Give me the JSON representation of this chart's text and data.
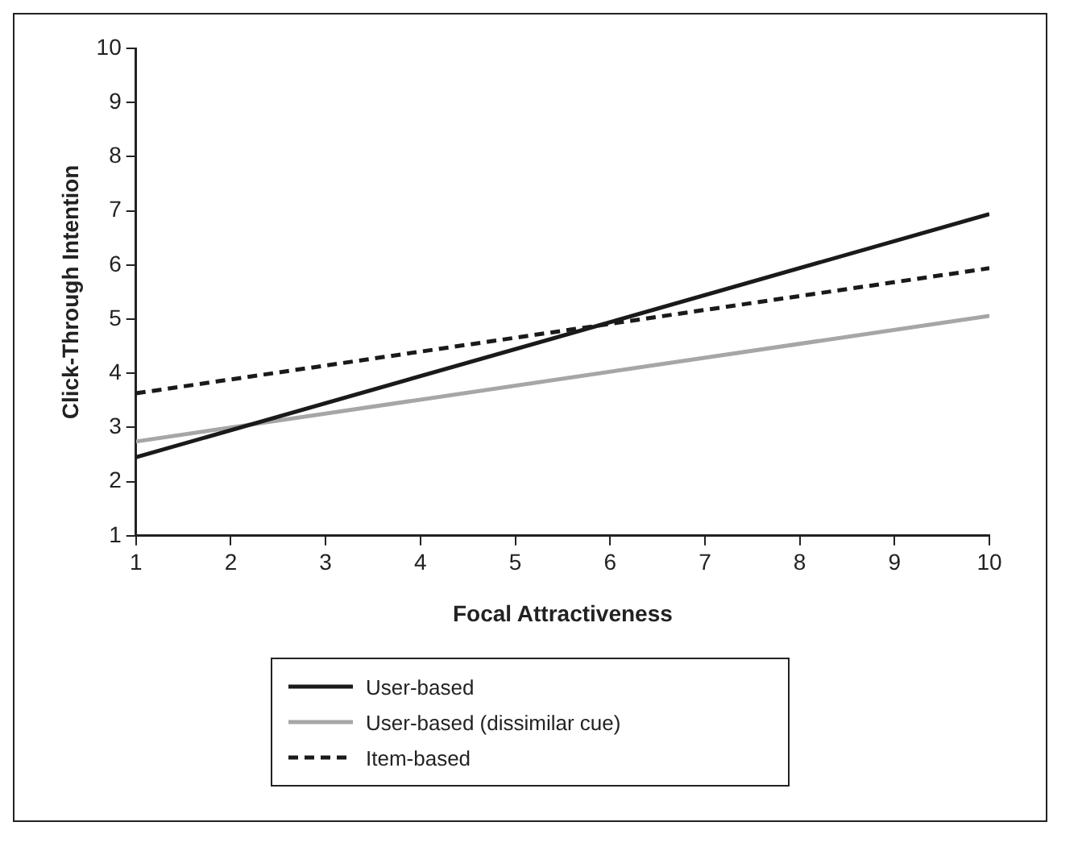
{
  "chart_data": {
    "type": "line",
    "xlabel": "Focal Attractiveness",
    "ylabel": "Click-Through Intention",
    "x": [
      1,
      10
    ],
    "xlim": [
      1,
      10
    ],
    "xticks": [
      1,
      2,
      3,
      4,
      5,
      6,
      7,
      8,
      9,
      10
    ],
    "ylim": [
      1,
      10
    ],
    "yticks": [
      1,
      2,
      3,
      4,
      5,
      6,
      7,
      8,
      9,
      10
    ],
    "series": [
      {
        "name": "User-based",
        "color": "#1a1a1a",
        "values": [
          2.45,
          6.94
        ],
        "line_style": "solid"
      },
      {
        "name": "User-based (dissimilar cue)",
        "color": "#a6a6a6",
        "values": [
          2.74,
          5.06
        ],
        "line_style": "solid"
      },
      {
        "name": "Item-based",
        "color": "#1a1a1a",
        "values": [
          3.63,
          5.94
        ],
        "line_style": "dashed"
      }
    ],
    "grid": false,
    "legend": "bottom",
    "marker": "none"
  }
}
